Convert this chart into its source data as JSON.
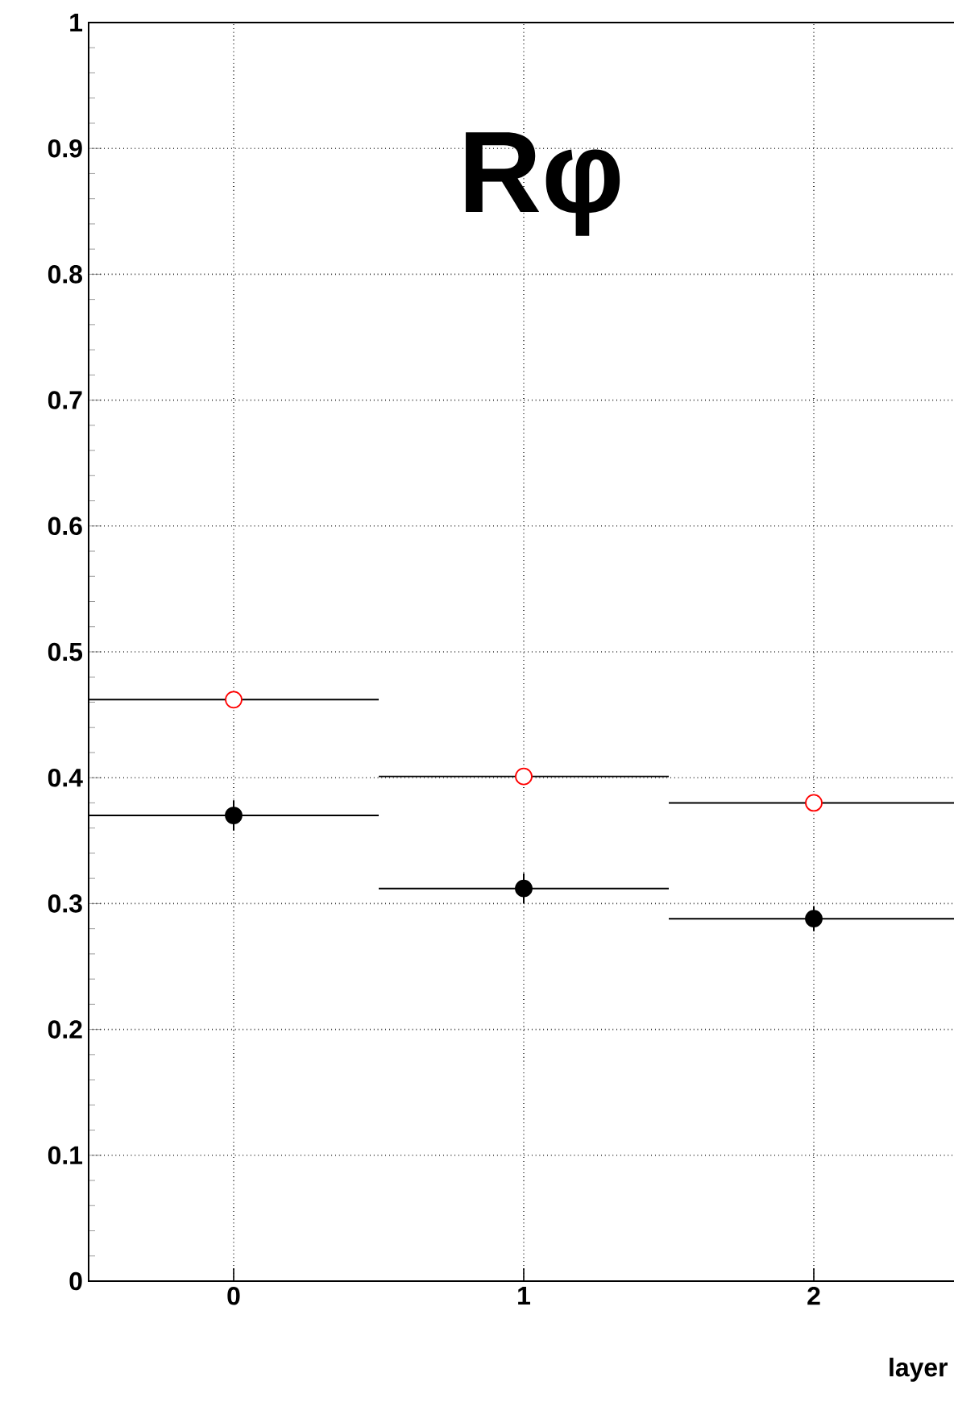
{
  "chart_data": {
    "type": "scatter",
    "title": "Rφ",
    "xlabel": "layer",
    "x": [
      0,
      1,
      2
    ],
    "series": [
      {
        "color": "#000000",
        "marker": "circle",
        "values": [
          0.37,
          0.312,
          0.288
        ],
        "errors": [
          0.012,
          0.012,
          0.01
        ],
        "xerrors": [
          0.5,
          0.5,
          0.5
        ]
      },
      {
        "color": "#ff0000",
        "marker": "circle",
        "values": [
          0.462,
          0.401,
          0.38
        ],
        "xerrors": [
          0.5,
          0.5,
          0.5
        ]
      }
    ],
    "xlim": [
      -0.5,
      2.5
    ],
    "ylim": [
      0,
      1
    ],
    "xticks": [
      0,
      1,
      2
    ],
    "yticks": [
      0,
      0.1,
      0.2,
      0.3,
      0.4,
      0.5,
      0.6,
      0.7,
      0.8,
      0.9,
      1
    ],
    "grid": true
  }
}
